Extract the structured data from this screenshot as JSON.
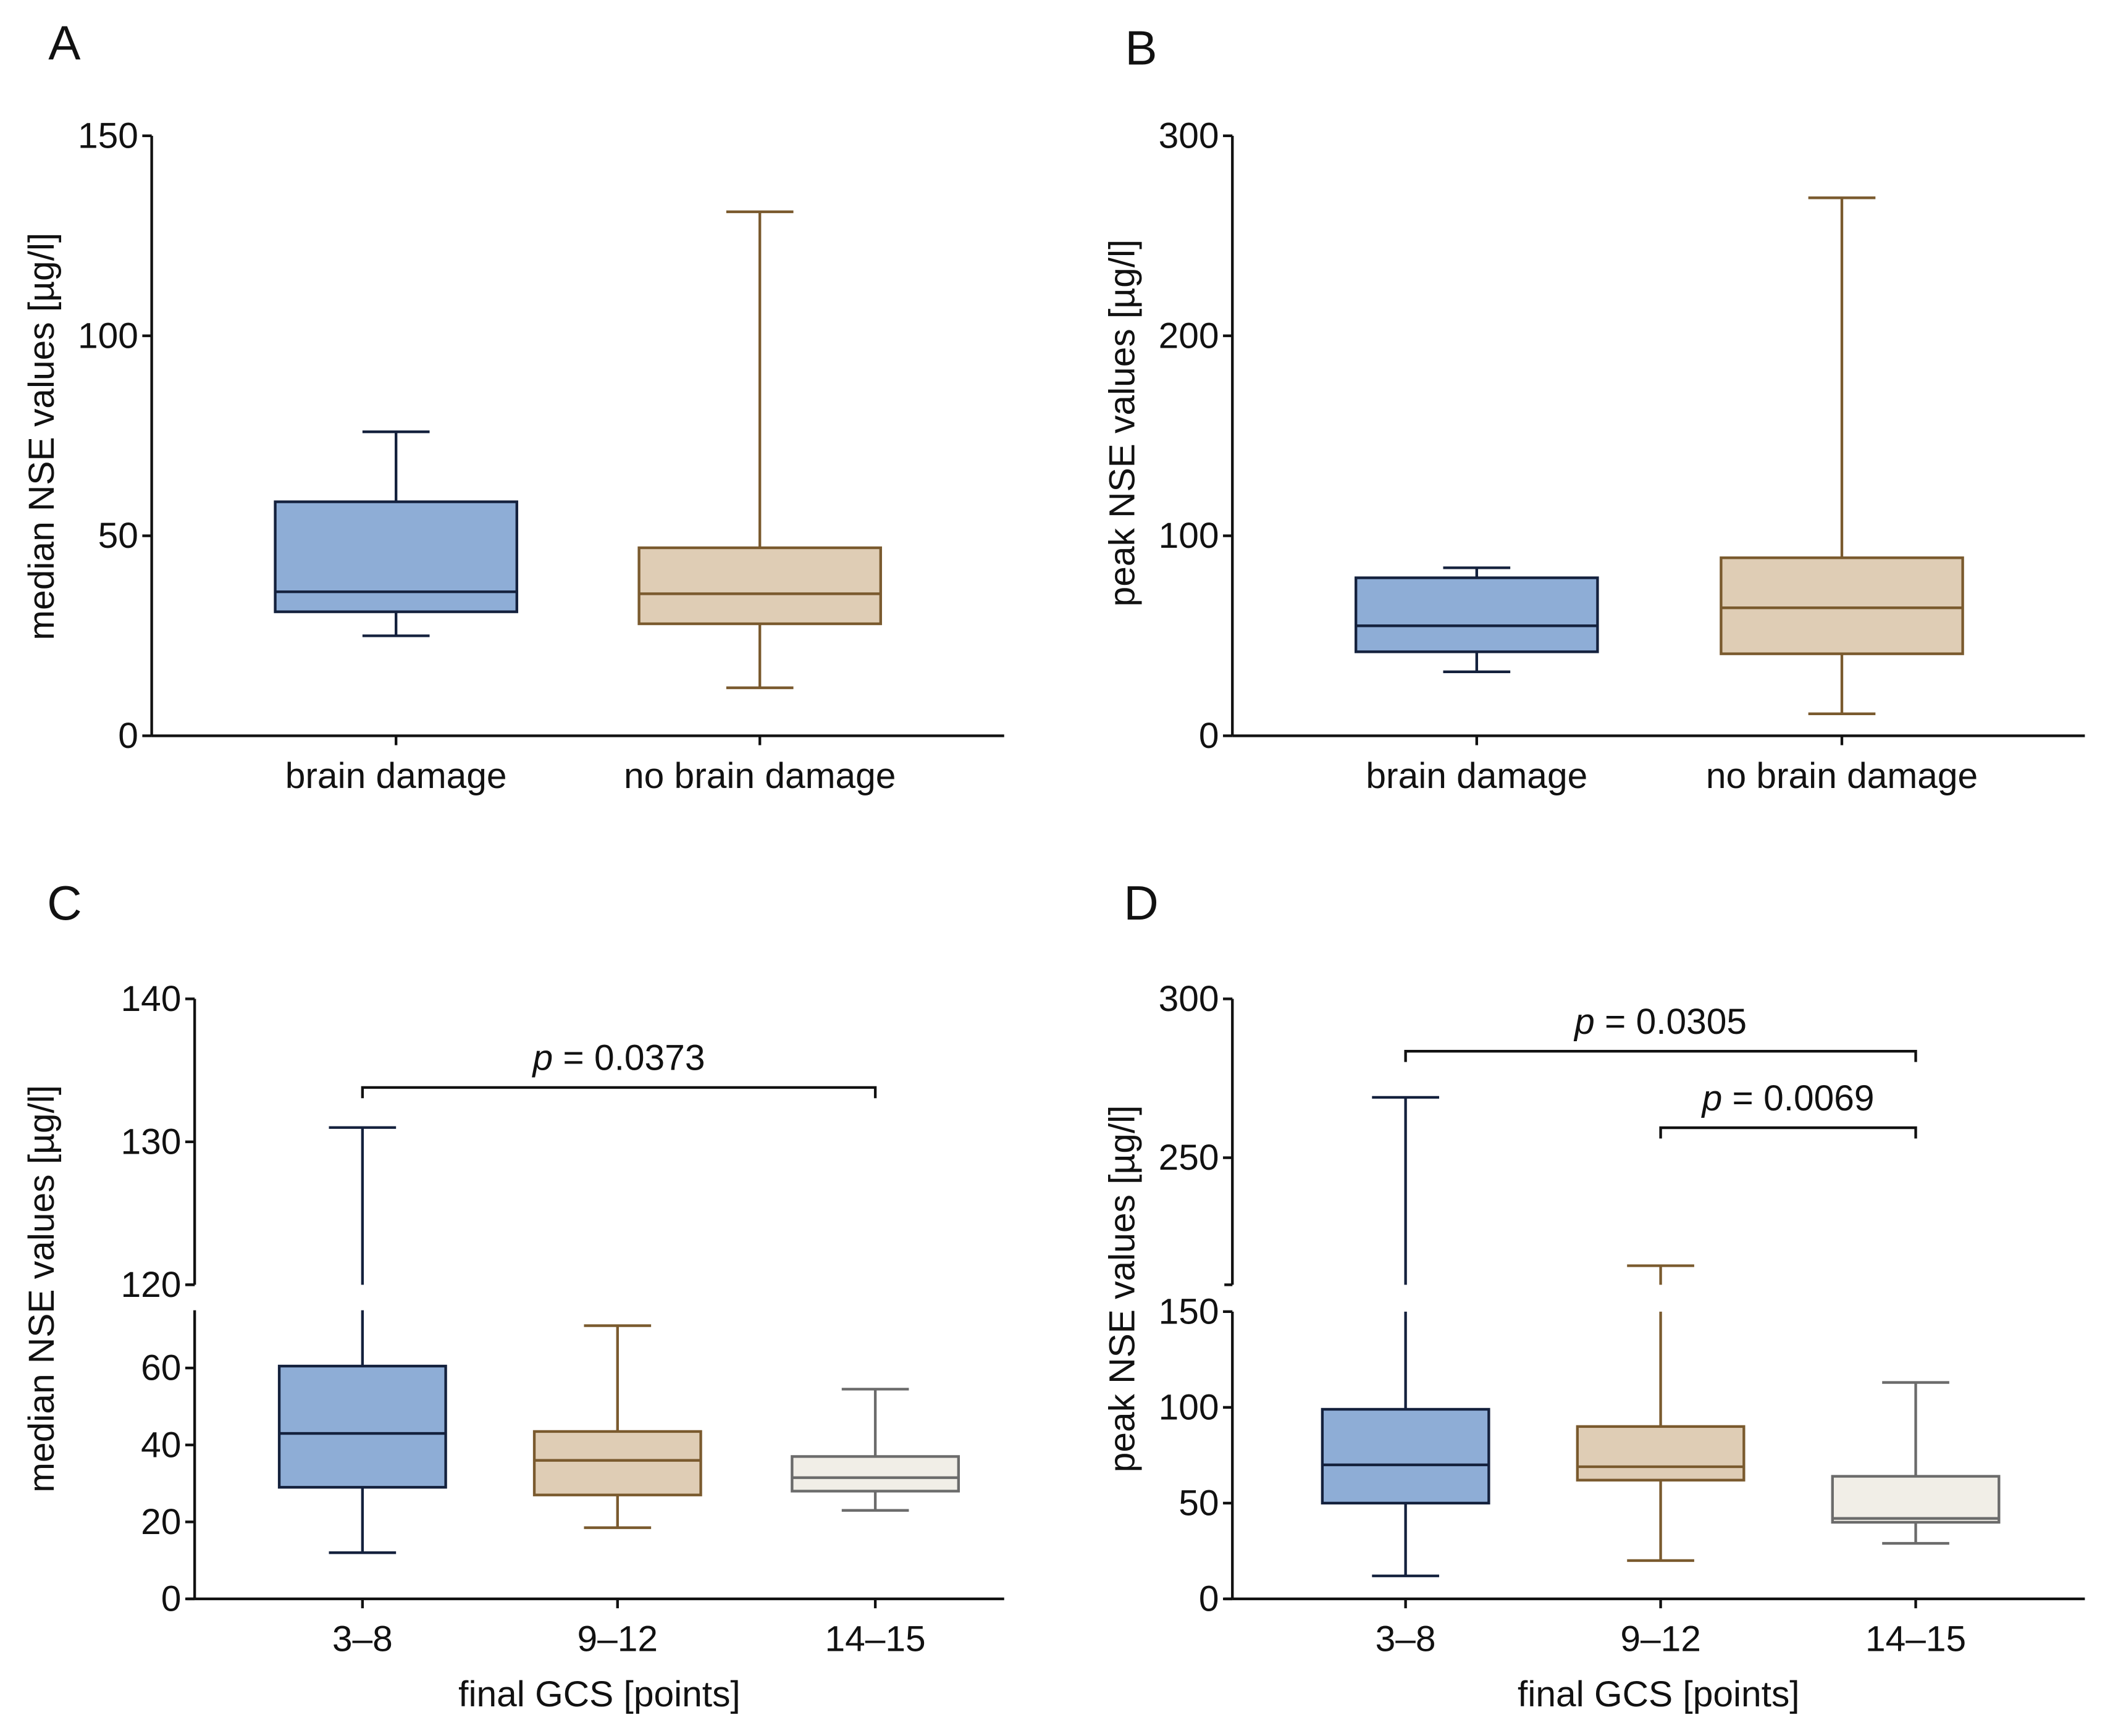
{
  "chart_data": [
    {
      "panel": "A",
      "type": "box",
      "ylabel": "median NSE values [µg/l]",
      "xlabel": "",
      "categories": [
        "brain damage",
        "no brain damage"
      ],
      "ylim": [
        0,
        150
      ],
      "yticks": [
        0,
        50,
        100,
        150
      ],
      "boxes": [
        {
          "min": 25,
          "q1": 31,
          "median": 36,
          "q3": 58.5,
          "max": 76,
          "style": "blue"
        },
        {
          "min": 12,
          "q1": 28,
          "median": 35.5,
          "q3": 47,
          "max": 131,
          "style": "tan"
        }
      ],
      "comparisons": []
    },
    {
      "panel": "B",
      "type": "box",
      "ylabel": "peak NSE values [µg/l]",
      "xlabel": "",
      "categories": [
        "brain damage",
        "no brain damage"
      ],
      "ylim": [
        0,
        300
      ],
      "yticks": [
        0,
        100,
        200,
        300
      ],
      "boxes": [
        {
          "min": 32,
          "q1": 42,
          "median": 55,
          "q3": 79,
          "max": 84,
          "style": "blue"
        },
        {
          "min": 11,
          "q1": 41,
          "median": 64,
          "q3": 89,
          "max": 269,
          "style": "tan"
        }
      ],
      "comparisons": []
    },
    {
      "panel": "C",
      "type": "box",
      "ylabel": "median NSE values [µg/l]",
      "xlabel": "final GCS [points]",
      "categories": [
        "3–8",
        "9–12",
        "14–15"
      ],
      "ylim": [
        0,
        140
      ],
      "axis_break": [
        75,
        120
      ],
      "yticks": [
        0,
        20,
        40,
        60,
        120,
        130,
        140
      ],
      "boxes": [
        {
          "min": 12,
          "q1": 29,
          "median": 43,
          "q3": 60.5,
          "max": 131,
          "style": "blue"
        },
        {
          "min": 18.5,
          "q1": 27,
          "median": 36,
          "q3": 43.5,
          "max": 71,
          "style": "tan"
        },
        {
          "min": 23,
          "q1": 28,
          "median": 31.5,
          "q3": 37,
          "max": 54.5,
          "style": "light"
        }
      ],
      "comparisons": [
        {
          "from": 0,
          "to": 2,
          "symbol": "p",
          "text": " = 0.0373"
        }
      ]
    },
    {
      "panel": "D",
      "type": "box",
      "ylabel": "peak NSE values [µg/l]",
      "xlabel": "final GCS [points]",
      "categories": [
        "3–8",
        "9–12",
        "14–15"
      ],
      "ylim": [
        0,
        300
      ],
      "axis_break": [
        150,
        210
      ],
      "yticks": [
        0,
        50,
        100,
        150,
        250,
        300
      ],
      "boxes": [
        {
          "min": 12,
          "q1": 50,
          "median": 70,
          "q3": 99,
          "max": 269,
          "style": "blue"
        },
        {
          "min": 20,
          "q1": 62,
          "median": 69,
          "q3": 90,
          "max": 216,
          "style": "tan"
        },
        {
          "min": 29,
          "q1": 40,
          "median": 42,
          "q3": 64,
          "max": 113,
          "style": "light"
        }
      ],
      "comparisons": [
        {
          "from": 0,
          "to": 2,
          "symbol": "p",
          "text": " = 0.0305"
        },
        {
          "from": 1,
          "to": 2,
          "symbol": "p",
          "text": " = 0.0069"
        }
      ]
    }
  ],
  "styles": {
    "blue": {
      "fill": "#8eadd6",
      "stroke": "#14213d"
    },
    "tan": {
      "fill": "#dfcdb5",
      "stroke": "#7a5a2e"
    },
    "light": {
      "fill": "#f1eee7",
      "stroke": "#6b6b6b"
    }
  }
}
